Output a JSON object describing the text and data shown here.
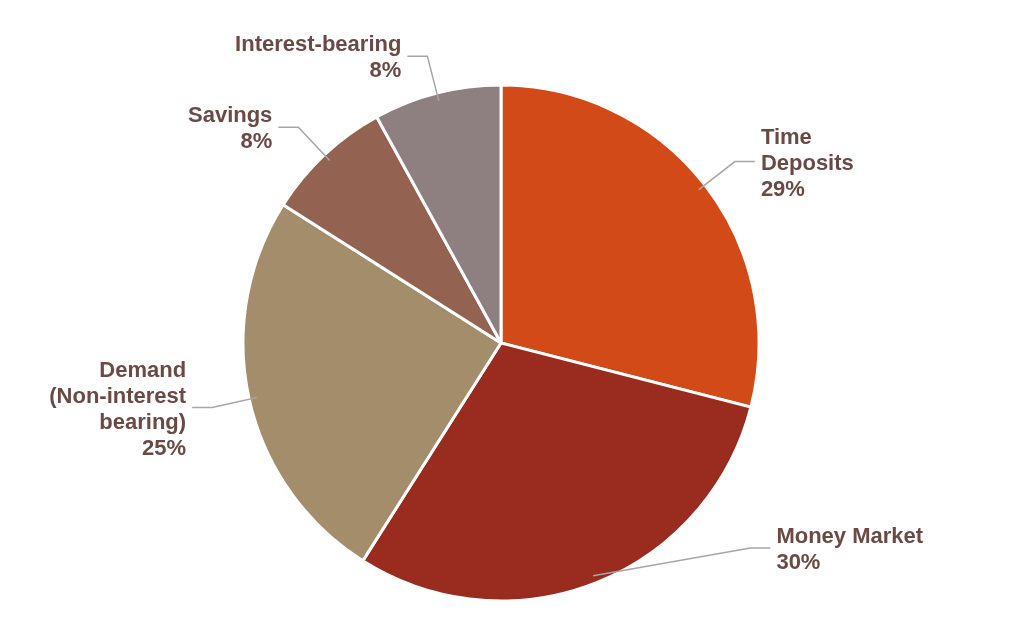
{
  "chart_data": {
    "type": "pie",
    "categories": [
      "Time Deposits",
      "Money Market",
      "Demand (Non-interest bearing)",
      "Savings",
      "Interest-bearing"
    ],
    "values": [
      29,
      30,
      25,
      8,
      8
    ],
    "value_labels": [
      "29%",
      "30%",
      "25%",
      "8%",
      "8%"
    ],
    "colors": [
      "#d24a17",
      "#992b1f",
      "#a38d6a",
      "#946250",
      "#8e8080"
    ]
  }
}
